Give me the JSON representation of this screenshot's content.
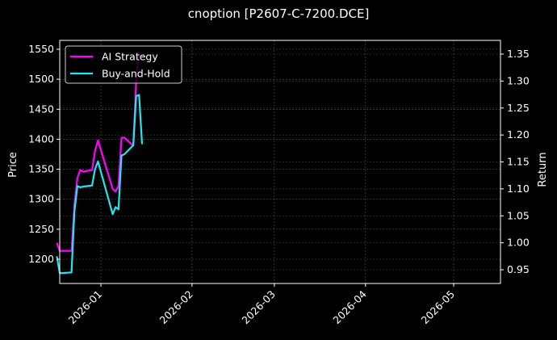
{
  "chart_data": {
    "type": "line",
    "title": "cnoption [P2607-C-7200.DCE]",
    "xlabel": "",
    "ylabel": "Price",
    "ylabel_right": "Return",
    "x_ticks": [
      "2026-01",
      "2026-02",
      "2026-03",
      "2026-04",
      "2026-05"
    ],
    "y_ticks_left": [
      1200,
      1250,
      1300,
      1350,
      1400,
      1450,
      1500,
      1550
    ],
    "y_ticks_right": [
      0.95,
      1.0,
      1.05,
      1.1,
      1.15,
      1.2,
      1.25,
      1.3,
      1.35
    ],
    "ylim_left": [
      1160,
      1562
    ],
    "ylim_right": [
      0.925,
      1.37
    ],
    "grid": true,
    "legend_position": "upper left",
    "background": "#000000",
    "series": [
      {
        "name": "AI Strategy",
        "color": "#ff00ff",
        "axis": "right",
        "points": [
          [
            "2025-12-17",
            1.0
          ],
          [
            "2025-12-18",
            0.985
          ],
          [
            "2025-12-19",
            0.985
          ],
          [
            "2025-12-22",
            0.985
          ],
          [
            "2025-12-23",
            1.07
          ],
          [
            "2025-12-24",
            1.12
          ],
          [
            "2025-12-25",
            1.135
          ],
          [
            "2025-12-26",
            1.132
          ],
          [
            "2025-12-29",
            1.135
          ],
          [
            "2025-12-30",
            1.17
          ],
          [
            "2025-12-31",
            1.19
          ],
          [
            "2026-01-05",
            1.1
          ],
          [
            "2026-01-06",
            1.095
          ],
          [
            "2026-01-07",
            1.105
          ],
          [
            "2026-01-08",
            1.195
          ],
          [
            "2026-01-09",
            1.195
          ],
          [
            "2026-01-12",
            1.18
          ],
          [
            "2026-01-13",
            1.3
          ],
          [
            "2026-01-14",
            1.355
          ]
        ]
      },
      {
        "name": "Buy-and-Hold",
        "color": "#22e5ee",
        "axis": "left",
        "points": [
          [
            "2025-12-17",
            1205
          ],
          [
            "2025-12-18",
            1177
          ],
          [
            "2025-12-19",
            1177
          ],
          [
            "2025-12-22",
            1178
          ],
          [
            "2025-12-23",
            1280
          ],
          [
            "2025-12-24",
            1322
          ],
          [
            "2025-12-25",
            1320
          ],
          [
            "2025-12-26",
            1321
          ],
          [
            "2025-12-29",
            1323
          ],
          [
            "2025-12-30",
            1350
          ],
          [
            "2025-12-31",
            1363
          ],
          [
            "2026-01-05",
            1275
          ],
          [
            "2026-01-06",
            1287
          ],
          [
            "2026-01-07",
            1283
          ],
          [
            "2026-01-08",
            1373
          ],
          [
            "2026-01-09",
            1375
          ],
          [
            "2026-01-12",
            1390
          ],
          [
            "2026-01-13",
            1472
          ],
          [
            "2026-01-14",
            1474
          ],
          [
            "2026-01-15",
            1392
          ]
        ]
      }
    ]
  },
  "legend": {
    "items": [
      {
        "label": "AI Strategy",
        "color": "#ff00ff"
      },
      {
        "label": "Buy-and-Hold",
        "color": "#22e5ee"
      }
    ]
  }
}
